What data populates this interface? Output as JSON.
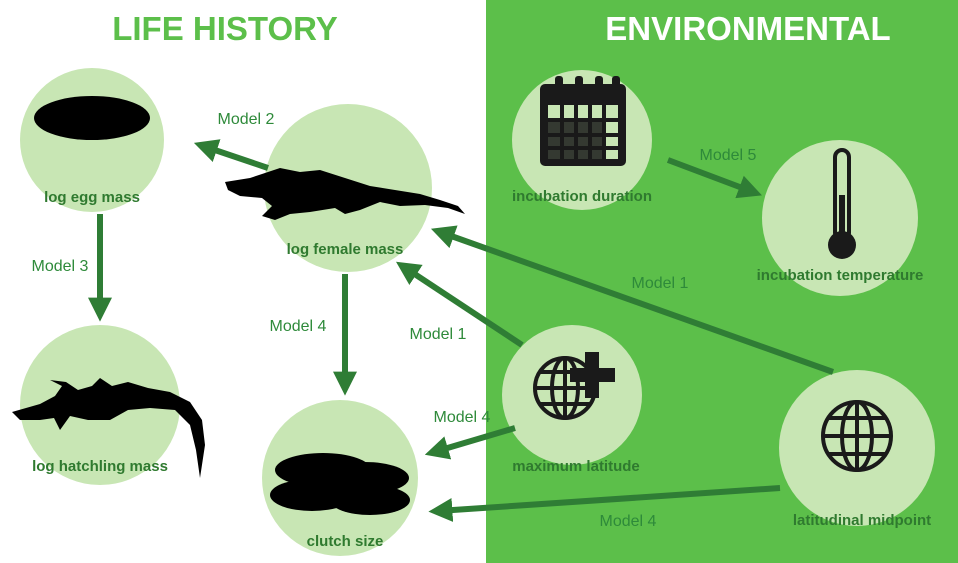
{
  "header": {
    "left_title": "LIFE HISTORY",
    "right_title": "ENVIRONMENTAL"
  },
  "nodes": [
    {
      "label": "log egg mass"
    },
    {
      "label": "log female mass"
    },
    {
      "label": "log hatchling mass"
    },
    {
      "label": "clutch size"
    },
    {
      "label": "incubation duration"
    },
    {
      "label": "incubation temperature"
    },
    {
      "label": "maximum latitude"
    },
    {
      "label": "latitudinal midpoint"
    }
  ],
  "edges": [
    {
      "label": "Model 2"
    },
    {
      "label": "Model 3"
    },
    {
      "label": "Model 4"
    },
    {
      "label": "Model 1"
    },
    {
      "label": "Model 1"
    },
    {
      "label": "Model 5"
    },
    {
      "label": "Model 4"
    },
    {
      "label": "Model 4"
    }
  ]
}
